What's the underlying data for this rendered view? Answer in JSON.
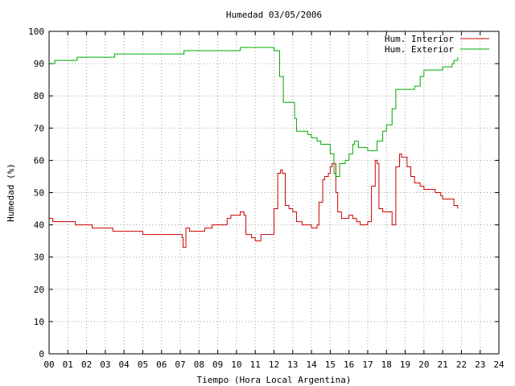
{
  "chart_data": {
    "type": "line",
    "title": "Humedad 03/05/2006",
    "xlabel": "Tiempo (Hora Local Argentina)",
    "ylabel": "Humedad (%)",
    "xlim": [
      0,
      24
    ],
    "ylim": [
      0,
      100
    ],
    "x_ticks": [
      "00",
      "01",
      "02",
      "03",
      "04",
      "05",
      "06",
      "07",
      "08",
      "09",
      "10",
      "11",
      "12",
      "13",
      "14",
      "15",
      "16",
      "17",
      "18",
      "19",
      "20",
      "21",
      "22",
      "23",
      "24"
    ],
    "y_ticks": [
      "0",
      "10",
      "20",
      "30",
      "40",
      "50",
      "60",
      "70",
      "80",
      "90",
      "100"
    ],
    "grid": true,
    "legend_position": "top-right",
    "series": [
      {
        "name": "Hum. Interior",
        "color": "#cc0000",
        "x": [
          0,
          0.2,
          1.4,
          2.0,
          2.3,
          3.4,
          3.6,
          4.0,
          4.5,
          5.0,
          6.0,
          7.0,
          7.1,
          7.15,
          7.3,
          7.5,
          8.0,
          8.3,
          8.7,
          9.0,
          9.5,
          9.7,
          10.0,
          10.2,
          10.4,
          10.5,
          10.8,
          11.0,
          11.3,
          11.5,
          11.9,
          12.0,
          12.2,
          12.35,
          12.45,
          12.6,
          12.8,
          13.0,
          13.2,
          13.5,
          13.8,
          14.0,
          14.3,
          14.4,
          14.6,
          14.7,
          14.9,
          15.0,
          15.1,
          15.3,
          15.4,
          15.6,
          15.8,
          16.0,
          16.2,
          16.4,
          16.6,
          16.8,
          17.0,
          17.2,
          17.4,
          17.5,
          17.6,
          17.8,
          18.0,
          18.3,
          18.5,
          18.7,
          18.8,
          19.0,
          19.1,
          19.3,
          19.5,
          19.8,
          20.0,
          20.3,
          20.6,
          20.9,
          21.0,
          21.3,
          21.6,
          21.8
        ],
        "values": [
          42,
          41,
          40,
          40,
          39,
          38,
          38,
          38,
          38,
          37,
          37,
          37,
          36,
          33,
          39,
          38,
          38,
          39,
          40,
          40,
          42,
          43,
          43,
          44,
          43,
          37,
          36,
          35,
          37,
          37,
          37,
          45,
          56,
          57,
          56,
          46,
          45,
          44,
          41,
          40,
          40,
          39,
          40,
          47,
          54,
          55,
          56,
          58,
          59,
          50,
          44,
          42,
          42,
          43,
          42,
          41,
          40,
          40,
          41,
          52,
          60,
          59,
          45,
          44,
          44,
          40,
          58,
          62,
          61,
          61,
          58,
          55,
          53,
          52,
          51,
          51,
          50,
          49,
          48,
          48,
          46,
          45
        ]
      },
      {
        "name": "Hum. Exterior",
        "color": "#00aa00",
        "x": [
          0,
          0.3,
          1.3,
          1.5,
          2.0,
          2.8,
          3.5,
          4.0,
          4.5,
          5.0,
          6.0,
          7.0,
          7.2,
          7.5,
          8.0,
          9.0,
          10.0,
          10.2,
          10.4,
          11.0,
          11.5,
          12.0,
          12.3,
          12.5,
          12.7,
          13.0,
          13.1,
          13.2,
          13.5,
          13.8,
          14.0,
          14.3,
          14.5,
          14.8,
          15.0,
          15.2,
          15.3,
          15.5,
          15.8,
          16.0,
          16.2,
          16.3,
          16.5,
          16.8,
          17.0,
          17.3,
          17.5,
          17.8,
          18.0,
          18.3,
          18.5,
          19.0,
          19.5,
          19.8,
          20.0,
          20.5,
          21.0,
          21.3,
          21.5,
          21.6,
          21.8
        ],
        "values": [
          90,
          91,
          91,
          92,
          92,
          92,
          93,
          93,
          93,
          93,
          93,
          93,
          94,
          94,
          94,
          94,
          94,
          95,
          95,
          95,
          95,
          94,
          86,
          78,
          78,
          78,
          73,
          69,
          69,
          68,
          67,
          66,
          65,
          65,
          62,
          56,
          55,
          59,
          60,
          62,
          65,
          66,
          64,
          64,
          63,
          63,
          66,
          69,
          71,
          76,
          82,
          82,
          83,
          86,
          88,
          88,
          89,
          89,
          90,
          91,
          92
        ]
      }
    ]
  }
}
